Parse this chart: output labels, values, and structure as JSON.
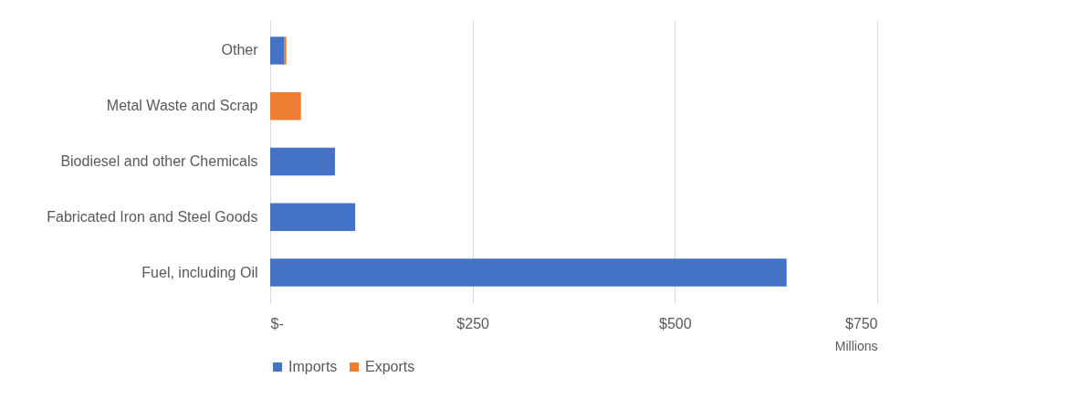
{
  "chart_data": {
    "type": "bar",
    "orientation": "horizontal",
    "stacked": true,
    "xlabel": "Millions",
    "categories": [
      "Other",
      "Metal Waste and Scrap",
      "Biodiesel and other Chemicals",
      "Fabricated Iron and Steel Goods",
      "Fuel, including Oil"
    ],
    "series": [
      {
        "name": "Imports",
        "color": "#4472c4",
        "values": [
          17,
          0,
          80,
          105,
          638
        ]
      },
      {
        "name": "Exports",
        "color": "#ed7d31",
        "values": [
          3,
          38,
          0,
          0,
          0
        ]
      }
    ],
    "xlim": [
      0,
      750
    ],
    "xticks": [
      {
        "value": 0,
        "label": "$-"
      },
      {
        "value": 250,
        "label": "$250"
      },
      {
        "value": 500,
        "label": "$500"
      },
      {
        "value": 750,
        "label": "$750"
      }
    ],
    "grid": "x",
    "legend": "bottom"
  }
}
